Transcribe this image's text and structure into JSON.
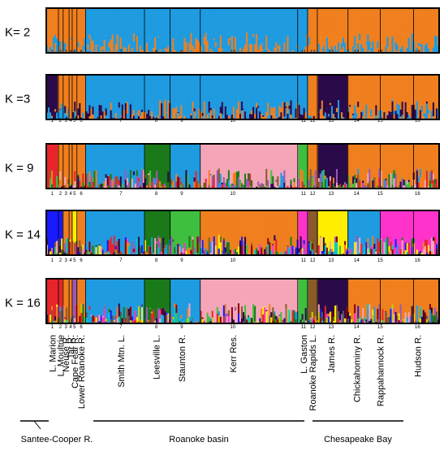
{
  "chart_data": {
    "type": "bar",
    "stacked": true,
    "normalized": true,
    "panels": [
      {
        "label": "K= 2",
        "k": 2
      },
      {
        "label": "K =3",
        "k": 3
      },
      {
        "label": "K = 9",
        "k": 9
      },
      {
        "label": "K = 14",
        "k": 14
      },
      {
        "label": "K = 16",
        "k": 16
      }
    ],
    "population_numbers": [
      "1",
      "2",
      "3",
      "4",
      "5",
      "6",
      "7",
      "8",
      "9",
      "10",
      "11",
      "12",
      "13",
      "14",
      "15",
      "16"
    ],
    "populations": [
      {
        "num": "1",
        "name": "L. Marion"
      },
      {
        "num": "2",
        "name": "L. Moultrie"
      },
      {
        "num": "3",
        "name": "Neuse R."
      },
      {
        "num": "4",
        "name": "Tar R."
      },
      {
        "num": "5",
        "name": "Cape Fear R."
      },
      {
        "num": "6",
        "name": "Lower Roanoke R."
      },
      {
        "num": "7",
        "name": "Smith Mtn. L."
      },
      {
        "num": "8",
        "name": "Leesville L."
      },
      {
        "num": "9",
        "name": "Staunton R."
      },
      {
        "num": "10",
        "name": "Kerr Res."
      },
      {
        "num": "11",
        "name": "L. Gaston"
      },
      {
        "num": "12",
        "name": "Roanoke Rapids L."
      },
      {
        "num": "13",
        "name": "James R."
      },
      {
        "num": "14",
        "name": "Chickahominy R."
      },
      {
        "num": "15",
        "name": "Rappahannock R."
      },
      {
        "num": "16",
        "name": "Hudson R."
      }
    ],
    "regions": [
      {
        "name": "Santee-Cooper R."
      },
      {
        "name": "Roanoke basin"
      },
      {
        "name": "Chesapeake Bay"
      }
    ],
    "colors": {
      "k2": [
        "#f07f1e",
        "#1f9be0"
      ],
      "k3": [
        "#f07f1e",
        "#1f9be0",
        "#2b0a4a"
      ],
      "palette": [
        "#e8242b",
        "#2b0a4a",
        "#1f9be0",
        "#f07f1e",
        "#1a7a1a",
        "#f4a6b8",
        "#3fbf3f",
        "#8a5a2b",
        "#9b59b6",
        "#ffee00",
        "#ff33cc",
        "#00c8c8",
        "#1a1aff",
        "#8b0000",
        "#cccc00",
        "#555555"
      ]
    }
  }
}
